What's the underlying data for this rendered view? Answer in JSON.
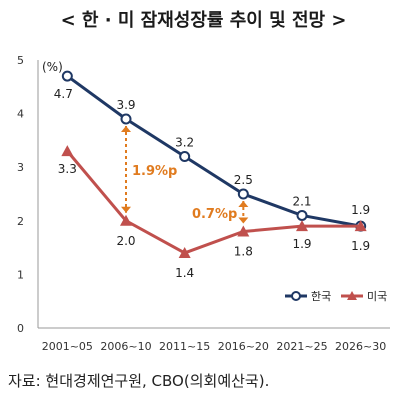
{
  "title": "< 한 · 미 잠재성장률 추이 및 전망 >",
  "source": "자료: 현대경제연구원, CBO(의회예산국).",
  "chart_data": {
    "type": "line",
    "unit_label": "(%)",
    "categories": [
      "2001~05",
      "2006~10",
      "2011~15",
      "2016~20",
      "2021~25",
      "2026~30"
    ],
    "ylim": [
      0,
      5
    ],
    "yticks": [
      "0",
      "1",
      "2",
      "3",
      "4",
      "5"
    ],
    "grid": false,
    "legend_position": "bottom-right",
    "series": [
      {
        "name": "한국",
        "values": [
          4.7,
          3.9,
          3.2,
          2.5,
          2.1,
          1.9
        ],
        "labels": [
          "4.7",
          "3.9",
          "3.2",
          "2.5",
          "2.1",
          "1.9"
        ],
        "color": "#1f3864",
        "marker": "circle"
      },
      {
        "name": "미국",
        "values": [
          3.3,
          2.0,
          1.4,
          1.8,
          1.9,
          1.9
        ],
        "labels": [
          "3.3",
          "2.0",
          "1.4",
          "1.8",
          "1.9",
          "1.9"
        ],
        "color": "#c0504d",
        "marker": "triangle"
      }
    ],
    "annotations": [
      {
        "text": "1.9%p",
        "category": "2006~10",
        "from": 3.9,
        "to": 2.0,
        "color": "#e07b1f"
      },
      {
        "text": "0.7%p",
        "category": "2016~20",
        "from": 2.5,
        "to": 1.8,
        "color": "#e07b1f"
      }
    ]
  }
}
